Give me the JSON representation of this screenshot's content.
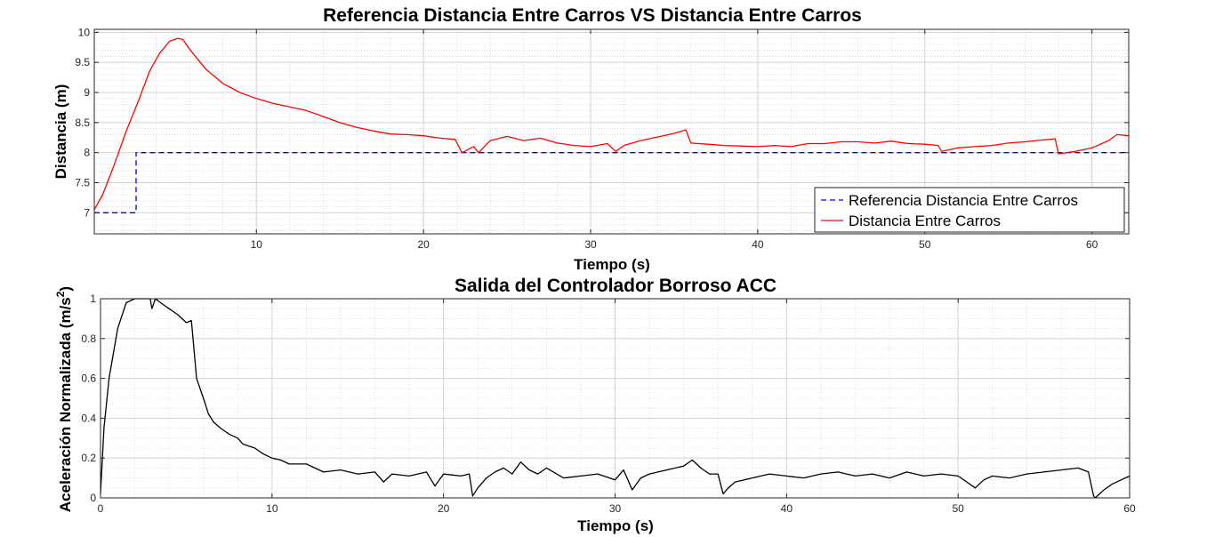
{
  "chart_data": [
    {
      "type": "line",
      "title": "Referencia Distancia Entre Carros VS Distancia Entre Carros",
      "xlabel": "Tiempo (s)",
      "ylabel": "Distancia (m)",
      "xlim": [
        0.3,
        62.2
      ],
      "ylim": [
        6.65,
        10.05
      ],
      "xticks": [
        10,
        20,
        30,
        40,
        50,
        60
      ],
      "yticks": [
        7,
        7.5,
        8,
        8.5,
        9,
        9.5,
        10
      ],
      "grid": "on, minor dotted",
      "legend_position": "bottom-right",
      "series": [
        {
          "name": "Referencia Distancia Entre Carros",
          "color": "#0000ff",
          "style": "dashed",
          "x": [
            0.3,
            2.8,
            2.8,
            62.2
          ],
          "y": [
            7.0,
            7.0,
            8.0,
            8.0
          ]
        },
        {
          "name": "Distancia Entre Carros",
          "color": "#ff0000",
          "style": "solid",
          "x": [
            0.3,
            0.8,
            1.5,
            2.2,
            3.0,
            3.6,
            4.2,
            4.8,
            5.3,
            5.6,
            6.0,
            6.5,
            7.0,
            8.0,
            9.0,
            10.0,
            11.0,
            12.0,
            13.0,
            14.0,
            15.0,
            16.0,
            17.0,
            18.0,
            19.0,
            20.0,
            21.0,
            21.9,
            22.3,
            23.0,
            23.3,
            24.0,
            25.0,
            26.0,
            27.0,
            28.0,
            29.0,
            30.0,
            31.0,
            31.5,
            32.0,
            33.0,
            34.0,
            35.0,
            35.7,
            36.0,
            37.0,
            38.0,
            39.0,
            40.0,
            41.0,
            42.0,
            43.0,
            44.0,
            45.0,
            46.0,
            47.0,
            48.0,
            49.0,
            50.0,
            50.8,
            51.0,
            52.0,
            53.0,
            54.0,
            55.0,
            56.0,
            57.0,
            57.8,
            58.0,
            59.0,
            60.0,
            61.0,
            61.5,
            62.2
          ],
          "y": [
            7.05,
            7.3,
            7.8,
            8.35,
            8.9,
            9.35,
            9.65,
            9.85,
            9.9,
            9.88,
            9.72,
            9.55,
            9.38,
            9.15,
            9.0,
            8.9,
            8.82,
            8.76,
            8.7,
            8.6,
            8.5,
            8.42,
            8.36,
            8.31,
            8.3,
            8.28,
            8.24,
            8.22,
            8.0,
            8.1,
            8.0,
            8.2,
            8.27,
            8.2,
            8.24,
            8.16,
            8.12,
            8.1,
            8.15,
            8.02,
            8.12,
            8.2,
            8.26,
            8.32,
            8.38,
            8.16,
            8.14,
            8.12,
            8.11,
            8.1,
            8.12,
            8.1,
            8.15,
            8.15,
            8.18,
            8.18,
            8.16,
            8.19,
            8.15,
            8.14,
            8.12,
            8.02,
            8.08,
            8.1,
            8.12,
            8.16,
            8.18,
            8.21,
            8.23,
            7.98,
            8.02,
            8.08,
            8.2,
            8.3,
            8.28
          ]
        }
      ]
    },
    {
      "type": "line",
      "title": "Salida del Controlador Borroso ACC",
      "xlabel": "Tiempo (s)",
      "ylabel": "Aceleración Normalizada (m/s²)",
      "ylabel_main": "Aceleración Normalizada (m/s",
      "ylabel_sup": "2",
      "ylabel_close": ")",
      "xlim": [
        0,
        60
      ],
      "ylim": [
        0,
        1
      ],
      "xticks": [
        0,
        10,
        20,
        30,
        40,
        50,
        60
      ],
      "yticks": [
        0,
        0.2,
        0.4,
        0.6,
        0.8,
        1
      ],
      "grid": "on, minor dotted",
      "series": [
        {
          "color": "#000000",
          "style": "solid",
          "x": [
            0,
            0.2,
            0.5,
            1.0,
            1.5,
            2.0,
            2.5,
            2.9,
            3.0,
            3.2,
            3.5,
            4.0,
            4.5,
            5.0,
            5.3,
            5.6,
            6.0,
            6.3,
            6.6,
            7.0,
            7.5,
            8.0,
            8.3,
            9.0,
            9.5,
            10.0,
            10.5,
            11.0,
            12.0,
            12.5,
            13.0,
            14.0,
            15.0,
            16.0,
            16.5,
            17.0,
            18.0,
            19.0,
            19.5,
            20.0,
            21.0,
            21.5,
            21.7,
            22.0,
            22.5,
            23.0,
            23.5,
            24.0,
            24.5,
            25.0,
            25.5,
            26.0,
            27.0,
            28.0,
            29.0,
            30.0,
            30.5,
            31.0,
            31.5,
            32.0,
            33.0,
            34.0,
            34.5,
            35.0,
            35.5,
            36.0,
            36.3,
            36.6,
            37.0,
            38.0,
            39.0,
            40.0,
            41.0,
            42.0,
            43.0,
            44.0,
            45.0,
            46.0,
            47.0,
            48.0,
            49.0,
            50.0,
            51.0,
            51.5,
            52.0,
            53.0,
            54.0,
            55.0,
            56.0,
            57.0,
            57.6,
            57.9,
            58.0,
            58.5,
            59.0,
            59.5,
            60.0
          ],
          "y": [
            0.02,
            0.35,
            0.6,
            0.85,
            0.98,
            1.0,
            1.0,
            1.0,
            0.95,
            1.0,
            0.98,
            0.95,
            0.92,
            0.88,
            0.89,
            0.6,
            0.5,
            0.42,
            0.38,
            0.35,
            0.32,
            0.3,
            0.27,
            0.25,
            0.22,
            0.2,
            0.19,
            0.17,
            0.17,
            0.15,
            0.13,
            0.14,
            0.12,
            0.13,
            0.08,
            0.12,
            0.11,
            0.13,
            0.06,
            0.12,
            0.11,
            0.12,
            0.01,
            0.05,
            0.1,
            0.13,
            0.15,
            0.12,
            0.18,
            0.14,
            0.12,
            0.15,
            0.1,
            0.11,
            0.12,
            0.09,
            0.14,
            0.04,
            0.1,
            0.12,
            0.14,
            0.16,
            0.19,
            0.15,
            0.12,
            0.12,
            0.02,
            0.05,
            0.08,
            0.1,
            0.12,
            0.11,
            0.1,
            0.12,
            0.13,
            0.11,
            0.12,
            0.1,
            0.13,
            0.11,
            0.12,
            0.11,
            0.05,
            0.09,
            0.11,
            0.1,
            0.12,
            0.13,
            0.14,
            0.15,
            0.13,
            0.01,
            0.0,
            0.04,
            0.07,
            0.09,
            0.11
          ]
        }
      ]
    }
  ]
}
